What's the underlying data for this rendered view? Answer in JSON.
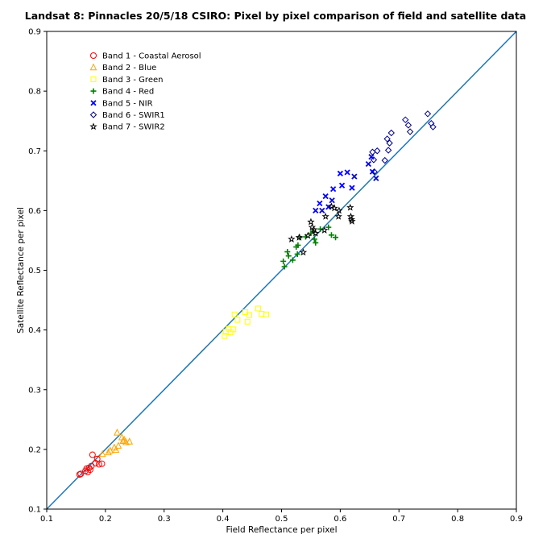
{
  "chart_data": {
    "type": "scatter",
    "title": "Landsat 8: Pinnacles 20/5/18 CSIRO: Pixel by pixel comparison of field and satellite data",
    "xlabel": "Field Reflectance per pixel",
    "ylabel": "Satellite Reflectance per pixel",
    "xlim": [
      0.1,
      0.9
    ],
    "ylim": [
      0.1,
      0.9
    ],
    "xticks": [
      "0.1",
      "0.2",
      "0.3",
      "0.4",
      "0.5",
      "0.6",
      "0.7",
      "0.8",
      "0.9"
    ],
    "yticks": [
      "0.1",
      "0.2",
      "0.3",
      "0.4",
      "0.5",
      "0.6",
      "0.7",
      "0.8",
      "0.9"
    ],
    "grid": false,
    "legend_position": "top-left",
    "reference_line": {
      "type": "one-to-one",
      "from": [
        0.1,
        0.1
      ],
      "to": [
        0.9,
        0.9
      ],
      "color": "#1f77b4"
    },
    "series": [
      {
        "name": "Band 1 - Coastal Aerosol",
        "marker": "circle",
        "color": "#ff0000",
        "points": [
          [
            0.156,
            0.158
          ],
          [
            0.158,
            0.159
          ],
          [
            0.166,
            0.164
          ],
          [
            0.168,
            0.168
          ],
          [
            0.172,
            0.169
          ],
          [
            0.174,
            0.166
          ],
          [
            0.178,
            0.191
          ],
          [
            0.183,
            0.177
          ],
          [
            0.186,
            0.184
          ],
          [
            0.189,
            0.175
          ],
          [
            0.194,
            0.176
          ],
          [
            0.176,
            0.172
          ],
          [
            0.17,
            0.162
          ]
        ]
      },
      {
        "name": "Band 2 - Blue",
        "marker": "triangle",
        "color": "#ffa500",
        "points": [
          [
            0.195,
            0.192
          ],
          [
            0.205,
            0.195
          ],
          [
            0.208,
            0.198
          ],
          [
            0.215,
            0.203
          ],
          [
            0.218,
            0.199
          ],
          [
            0.22,
            0.228
          ],
          [
            0.222,
            0.206
          ],
          [
            0.228,
            0.22
          ],
          [
            0.23,
            0.214
          ],
          [
            0.232,
            0.216
          ],
          [
            0.235,
            0.212
          ],
          [
            0.241,
            0.213
          ]
        ]
      },
      {
        "name": "Band 3 - Green",
        "marker": "square",
        "color": "#ffff00",
        "points": [
          [
            0.403,
            0.39
          ],
          [
            0.405,
            0.397
          ],
          [
            0.41,
            0.402
          ],
          [
            0.413,
            0.396
          ],
          [
            0.418,
            0.401
          ],
          [
            0.42,
            0.426
          ],
          [
            0.425,
            0.417
          ],
          [
            0.438,
            0.43
          ],
          [
            0.442,
            0.414
          ],
          [
            0.445,
            0.425
          ],
          [
            0.46,
            0.436
          ],
          [
            0.466,
            0.427
          ],
          [
            0.474,
            0.426
          ]
        ]
      },
      {
        "name": "Band 4 - Red",
        "marker": "plus",
        "color": "#008000",
        "points": [
          [
            0.503,
            0.515
          ],
          [
            0.505,
            0.506
          ],
          [
            0.51,
            0.531
          ],
          [
            0.512,
            0.524
          ],
          [
            0.519,
            0.517
          ],
          [
            0.525,
            0.539
          ],
          [
            0.527,
            0.527
          ],
          [
            0.528,
            0.542
          ],
          [
            0.531,
            0.555
          ],
          [
            0.541,
            0.556
          ],
          [
            0.55,
            0.562
          ],
          [
            0.554,
            0.565
          ],
          [
            0.556,
            0.552
          ],
          [
            0.558,
            0.546
          ],
          [
            0.566,
            0.569
          ],
          [
            0.58,
            0.572
          ],
          [
            0.585,
            0.559
          ],
          [
            0.592,
            0.555
          ]
        ]
      },
      {
        "name": "Band 5 - NIR",
        "marker": "x",
        "color": "#0000ff",
        "points": [
          [
            0.558,
            0.6
          ],
          [
            0.565,
            0.612
          ],
          [
            0.569,
            0.6
          ],
          [
            0.575,
            0.624
          ],
          [
            0.58,
            0.606
          ],
          [
            0.586,
            0.617
          ],
          [
            0.588,
            0.636
          ],
          [
            0.6,
            0.662
          ],
          [
            0.603,
            0.642
          ],
          [
            0.612,
            0.664
          ],
          [
            0.62,
            0.638
          ],
          [
            0.624,
            0.657
          ],
          [
            0.648,
            0.678
          ],
          [
            0.653,
            0.69
          ],
          [
            0.655,
            0.665
          ],
          [
            0.661,
            0.654
          ]
        ]
      },
      {
        "name": "Band 6 - SWIR1",
        "marker": "diamond",
        "color": "#00008b",
        "points": [
          [
            0.655,
            0.698
          ],
          [
            0.657,
            0.685
          ],
          [
            0.663,
            0.7
          ],
          [
            0.676,
            0.684
          ],
          [
            0.68,
            0.72
          ],
          [
            0.682,
            0.701
          ],
          [
            0.684,
            0.713
          ],
          [
            0.687,
            0.73
          ],
          [
            0.711,
            0.752
          ],
          [
            0.716,
            0.743
          ],
          [
            0.719,
            0.732
          ],
          [
            0.749,
            0.762
          ],
          [
            0.755,
            0.746
          ],
          [
            0.758,
            0.74
          ],
          [
            0.658,
            0.665
          ]
        ]
      },
      {
        "name": "Band 7 - SWIR2",
        "marker": "star",
        "color": "#000000",
        "points": [
          [
            0.517,
            0.552
          ],
          [
            0.53,
            0.555
          ],
          [
            0.537,
            0.53
          ],
          [
            0.545,
            0.558
          ],
          [
            0.55,
            0.581
          ],
          [
            0.552,
            0.572
          ],
          [
            0.555,
            0.568
          ],
          [
            0.558,
            0.562
          ],
          [
            0.573,
            0.567
          ],
          [
            0.575,
            0.59
          ],
          [
            0.585,
            0.607
          ],
          [
            0.59,
            0.604
          ],
          [
            0.597,
            0.59
          ],
          [
            0.617,
            0.605
          ],
          [
            0.618,
            0.59
          ],
          [
            0.619,
            0.585
          ],
          [
            0.62,
            0.582
          ],
          [
            0.598,
            0.6
          ]
        ]
      }
    ]
  }
}
